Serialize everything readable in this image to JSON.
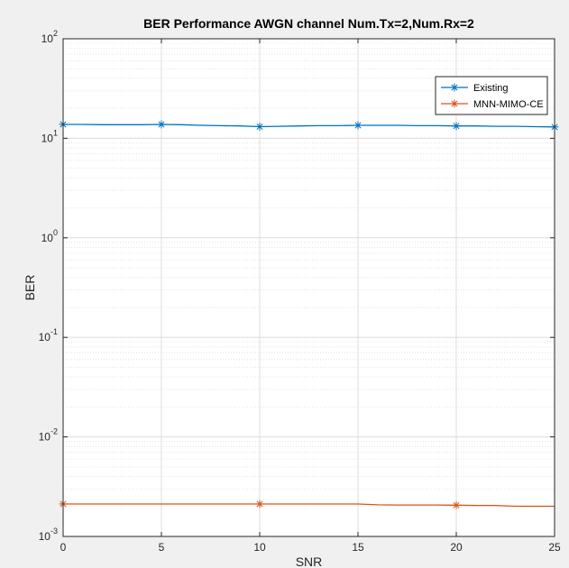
{
  "chart_data": {
    "type": "line",
    "title": "BER Performance AWGN channel Num.Tx=2,Num.Rx=2",
    "xlabel": "SNR",
    "ylabel": "BER",
    "xlim": [
      0,
      25
    ],
    "ylim": [
      0.001,
      100
    ],
    "yscale": "log",
    "xticks": [
      0,
      5,
      10,
      15,
      20,
      25
    ],
    "yticks": [
      {
        "value": 100,
        "base": "10",
        "exp": "2"
      },
      {
        "value": 10,
        "base": "10",
        "exp": "1"
      },
      {
        "value": 1,
        "base": "10",
        "exp": "0"
      },
      {
        "value": 0.1,
        "base": "10",
        "exp": "-1"
      },
      {
        "value": 0.01,
        "base": "10",
        "exp": "-2"
      },
      {
        "value": 0.001,
        "base": "10",
        "exp": "-3"
      }
    ],
    "grid": true,
    "legend_position": "top-right",
    "series": [
      {
        "name": "Existing",
        "color": "#0072BD",
        "marker": "asterisk",
        "x": [
          0,
          1,
          2,
          3,
          4,
          5,
          6,
          7,
          8,
          9,
          10,
          11,
          12,
          13,
          14,
          15,
          16,
          17,
          18,
          19,
          20,
          21,
          22,
          23,
          24,
          25
        ],
        "y": [
          13.8,
          13.8,
          13.7,
          13.7,
          13.7,
          13.8,
          13.7,
          13.5,
          13.4,
          13.3,
          13.1,
          13.2,
          13.3,
          13.4,
          13.4,
          13.5,
          13.5,
          13.5,
          13.4,
          13.4,
          13.3,
          13.3,
          13.2,
          13.2,
          13.1,
          13.0
        ],
        "marker_x": [
          0,
          5,
          10,
          15,
          20,
          25
        ]
      },
      {
        "name": "MNN-MIMO-CE",
        "color": "#D95319",
        "marker": "asterisk",
        "x": [
          0,
          1,
          2,
          3,
          4,
          5,
          6,
          7,
          8,
          9,
          10,
          11,
          12,
          13,
          14,
          15,
          16,
          17,
          18,
          19,
          20,
          21,
          22,
          23,
          24,
          25
        ],
        "y": [
          0.00212,
          0.00212,
          0.00212,
          0.00212,
          0.00212,
          0.00212,
          0.00212,
          0.00212,
          0.00212,
          0.00212,
          0.00212,
          0.00212,
          0.00212,
          0.00212,
          0.00212,
          0.00212,
          0.00208,
          0.00207,
          0.00207,
          0.00207,
          0.00206,
          0.00205,
          0.00205,
          0.00201,
          0.00201,
          0.00201
        ],
        "marker_x": [
          0,
          10,
          20
        ]
      }
    ]
  }
}
